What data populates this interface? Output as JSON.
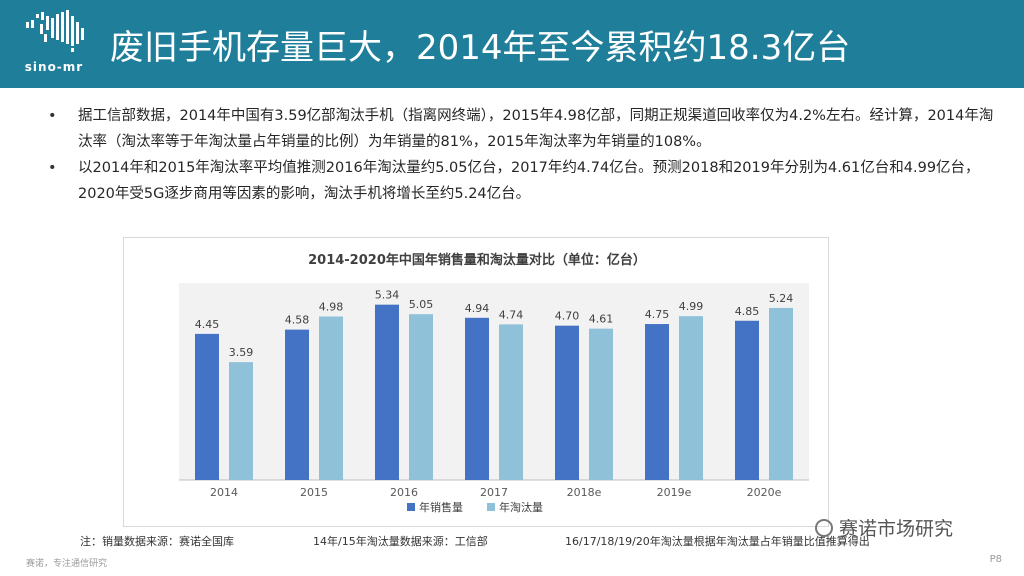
{
  "header": {
    "logo_text": "sino-mr",
    "title": "废旧手机存量巨大，2014年至今累积约18.3亿台"
  },
  "bullets": [
    "据工信部数据，2014年中国有3.59亿部淘汰手机（指离网终端），2015年4.98亿部，同期正规渠道回收率仅为4.2%左右。经计算，2014年淘汰率（淘汰率等于年淘汰量占年销量的比例）为年销量的81%，2015年淘汰率为年销量的108%。",
    "以2014年和2015年淘汰率平均值推测2016年淘汰量约5.05亿台，2017年约4.74亿台。预测2018和2019年分别为4.61亿台和4.99亿台，2020年受5G逐步商用等因素的影响，淘汰手机将增长至约5.24亿台。"
  ],
  "chart_data": {
    "type": "bar",
    "title": "2014-2020年中国年销售量和淘汰量对比（单位：亿台）",
    "categories": [
      "2014",
      "2015",
      "2016",
      "2017",
      "2018e",
      "2019e",
      "2020e"
    ],
    "series": [
      {
        "name": "年销售量",
        "values": [
          4.45,
          4.58,
          5.34,
          4.94,
          4.7,
          4.75,
          4.85
        ],
        "color": "#4472c4"
      },
      {
        "name": "年淘汰量",
        "values": [
          3.59,
          4.98,
          5.05,
          4.74,
          4.61,
          4.99,
          5.24
        ],
        "color": "#8fc1d9"
      }
    ],
    "ylim": [
      0,
      6
    ],
    "grid": false,
    "legend": "bottom",
    "plot_background": "#f2f2f2"
  },
  "footnotes": {
    "sales_source": "注：销量数据来源：赛诺全国库",
    "elimination_source": "14年/15年淘汰量数据来源：工信部",
    "estimate_note": "16/17/18/19/20年淘汰量根据年淘汰量占年销量比值推算得出"
  },
  "brand": "赛诺市场研究",
  "bottom_left": "赛诺，专注通信研究",
  "page_number": "P8",
  "colors": {
    "header": "#1f7f9a",
    "sales": "#4472c4",
    "elimination": "#8fc1d9"
  }
}
